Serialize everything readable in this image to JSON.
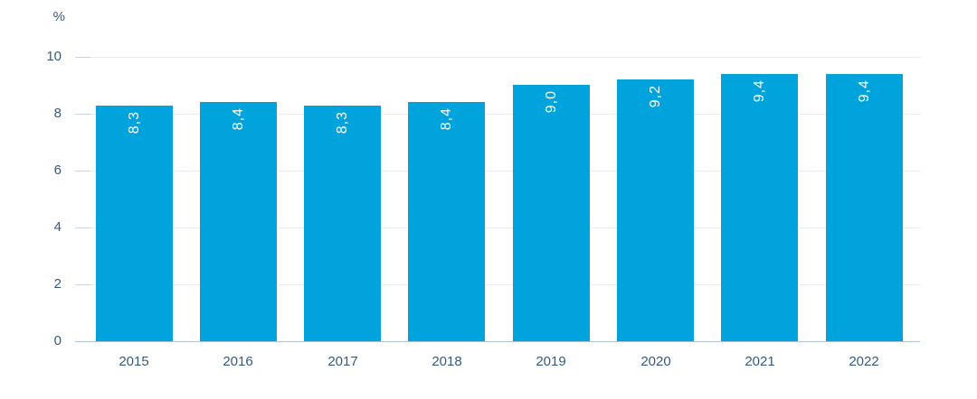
{
  "chart_data": {
    "type": "bar",
    "title": "",
    "ylabel": "%",
    "xlabel": "",
    "categories": [
      "2015",
      "2016",
      "2017",
      "2018",
      "2019",
      "2020",
      "2021",
      "2022"
    ],
    "values": [
      8.3,
      8.4,
      8.3,
      8.4,
      9.0,
      9.2,
      9.4,
      9.4
    ],
    "value_labels": [
      "8,3",
      "8,4",
      "8,3",
      "8,4",
      "9,0",
      "9,2",
      "9,4",
      "9,4"
    ],
    "yticks": [
      0,
      2,
      4,
      6,
      8,
      10
    ],
    "ylim": [
      0,
      10
    ],
    "grid": true,
    "legend_position": "none",
    "colors": {
      "bar": "#00a3dc",
      "bar_value_label": "#ffffff",
      "axis_text": "#355a7e",
      "gridline": "#e9edf0",
      "tick_mark": "#c9d4de",
      "baseline": "#b0c2d2"
    }
  }
}
